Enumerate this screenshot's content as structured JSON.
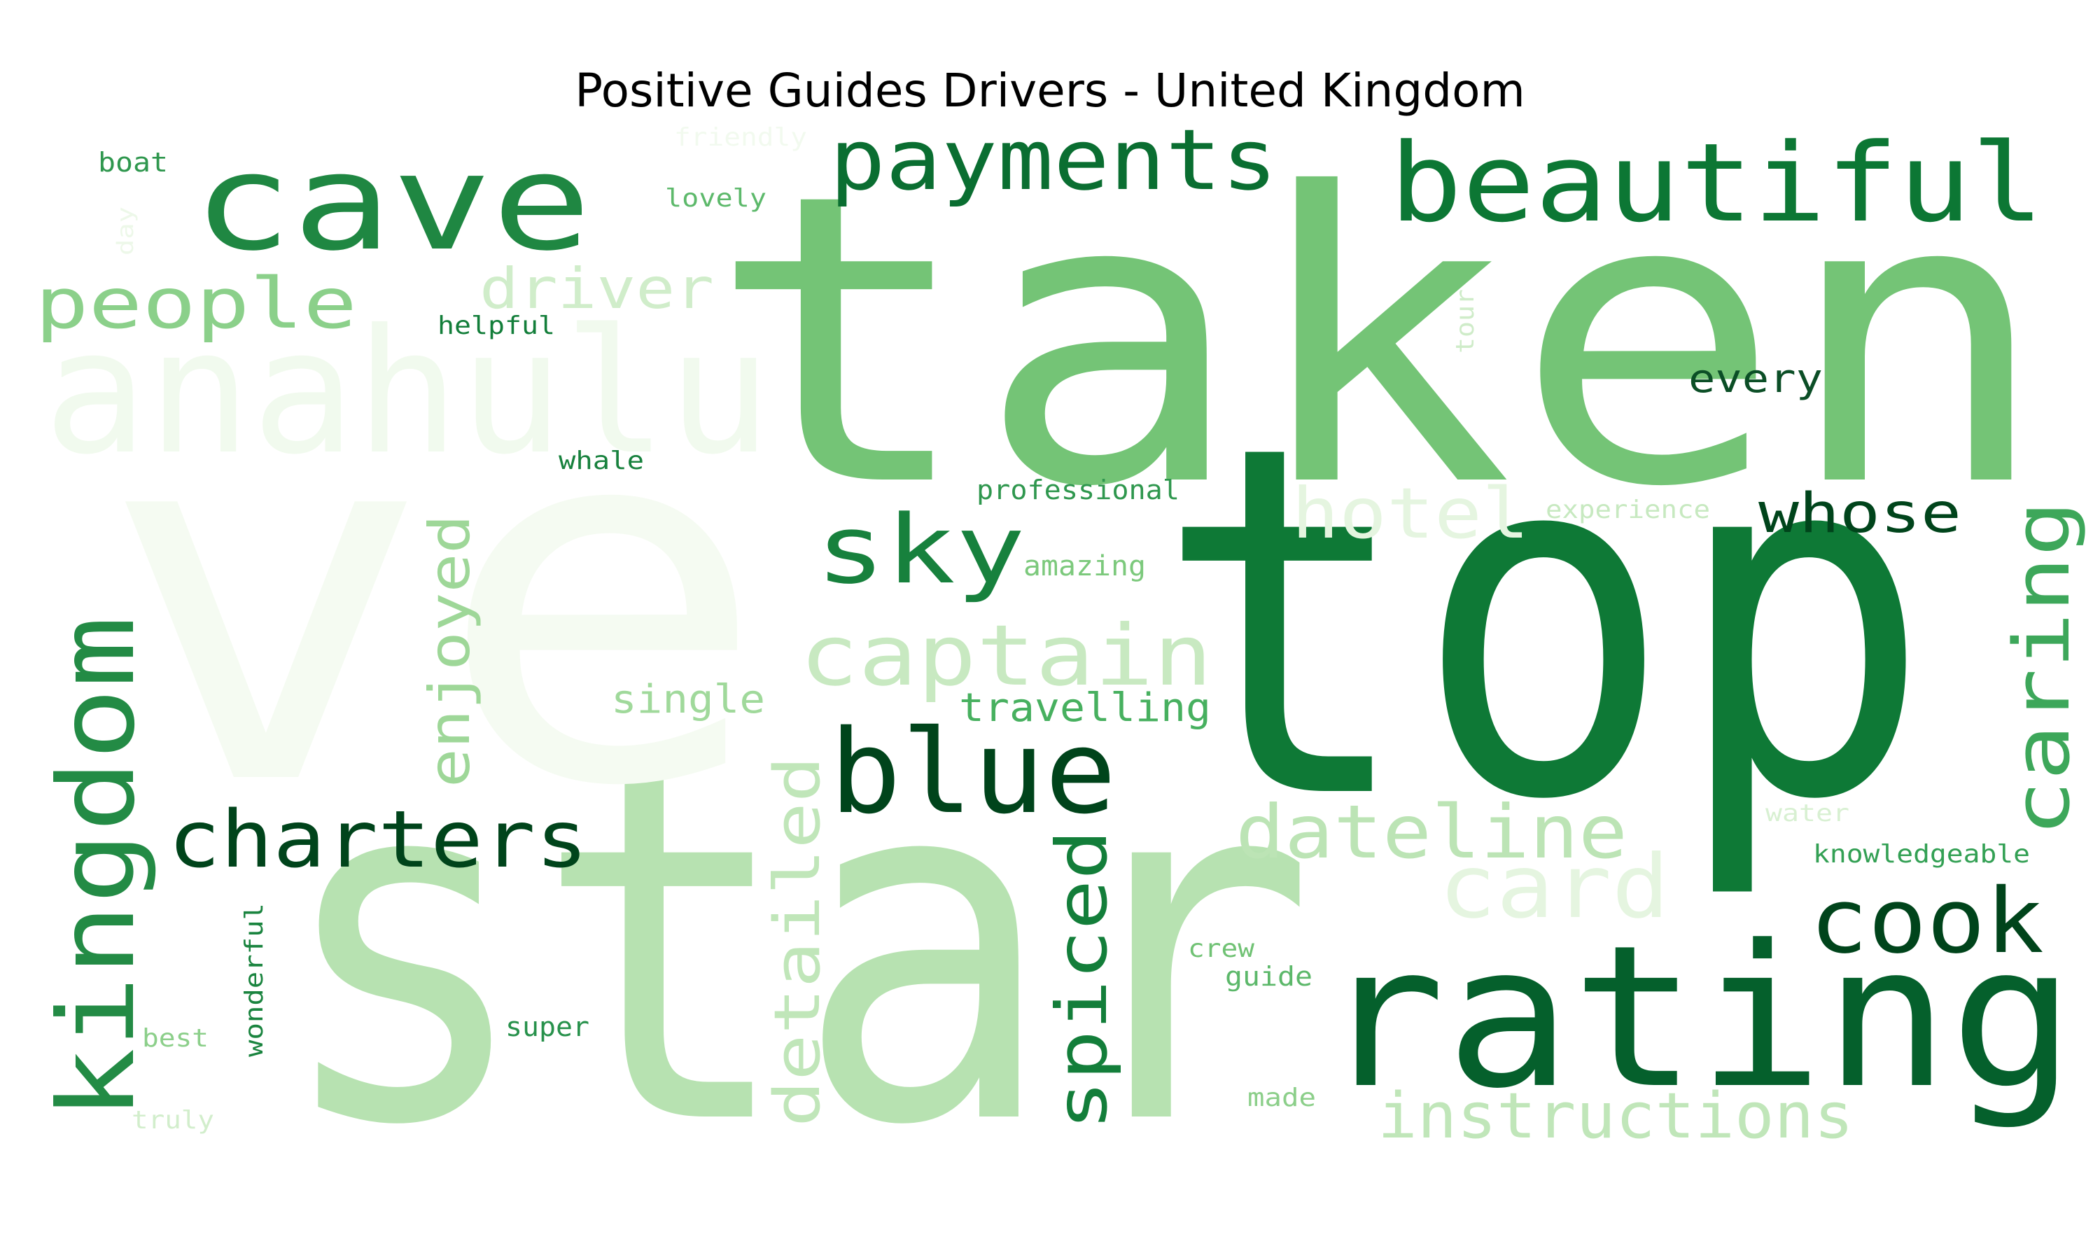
{
  "title": "Positive Guides Drivers - United Kingdom",
  "chart_data": {
    "type": "wordcloud",
    "title": "Positive Guides Drivers - United Kingdom",
    "colormap": "Greens",
    "words": [
      {
        "text": "taken",
        "color": "#74c476"
      },
      {
        "text": "star",
        "color": "#b7e2b1"
      },
      {
        "text": "ve",
        "color": "#f5fbf2"
      },
      {
        "text": "top",
        "color": "#0e7936"
      },
      {
        "text": "rating",
        "color": "#05602c"
      },
      {
        "text": "anahulu",
        "color": "#f1faee"
      },
      {
        "text": "cave",
        "color": "#1f8742"
      },
      {
        "text": "beautiful",
        "color": "#0c7734"
      },
      {
        "text": "payments",
        "color": "#0a6e31"
      },
      {
        "text": "kingdom",
        "color": "#238b45"
      },
      {
        "text": "blue",
        "color": "#00441b"
      },
      {
        "text": "sky",
        "color": "#17813d"
      },
      {
        "text": "captain",
        "color": "#c8e9c1"
      },
      {
        "text": "people",
        "color": "#8bd08a"
      },
      {
        "text": "charters",
        "color": "#00441b"
      },
      {
        "text": "dateline",
        "color": "#bce4b5"
      },
      {
        "text": "card",
        "color": "#e5f5e0"
      },
      {
        "text": "cook",
        "color": "#00441b"
      },
      {
        "text": "instructions",
        "color": "#c0e6b9"
      },
      {
        "text": "spiced",
        "color": "#137e3a"
      },
      {
        "text": "detailed",
        "color": "#c0e6b9"
      },
      {
        "text": "enjoyed",
        "color": "#9ed798"
      },
      {
        "text": "caring",
        "color": "#3da75a"
      },
      {
        "text": "hotel",
        "color": "#e5f5e0"
      },
      {
        "text": "whose",
        "color": "#00441b"
      },
      {
        "text": "driver",
        "color": "#d0edca"
      },
      {
        "text": "every",
        "color": "#0b4e26"
      },
      {
        "text": "travelling",
        "color": "#47b05f"
      },
      {
        "text": "single",
        "color": "#a0d99b"
      },
      {
        "text": "professional",
        "color": "#2f974e"
      },
      {
        "text": "amazing",
        "color": "#7cc97c"
      },
      {
        "text": "experience",
        "color": "#c7e9c0"
      },
      {
        "text": "helpful",
        "color": "#137e3a"
      },
      {
        "text": "whale",
        "color": "#17813d"
      },
      {
        "text": "lovely",
        "color": "#5db96b"
      },
      {
        "text": "boat",
        "color": "#2f974e"
      },
      {
        "text": "friendly",
        "color": "#f2faef"
      },
      {
        "text": "day",
        "color": "#edf8e9"
      },
      {
        "text": "tour",
        "color": "#cfecc9"
      },
      {
        "text": "water",
        "color": "#d8f0d2"
      },
      {
        "text": "knowledgeable",
        "color": "#33a054"
      },
      {
        "text": "crew",
        "color": "#70c274"
      },
      {
        "text": "guide",
        "color": "#5cb86a"
      },
      {
        "text": "wonderful",
        "color": "#1a843f"
      },
      {
        "text": "best",
        "color": "#8ccf8a"
      },
      {
        "text": "super",
        "color": "#27914b"
      },
      {
        "text": "made",
        "color": "#8ccf8a"
      },
      {
        "text": "truly",
        "color": "#d2eecc"
      }
    ]
  }
}
